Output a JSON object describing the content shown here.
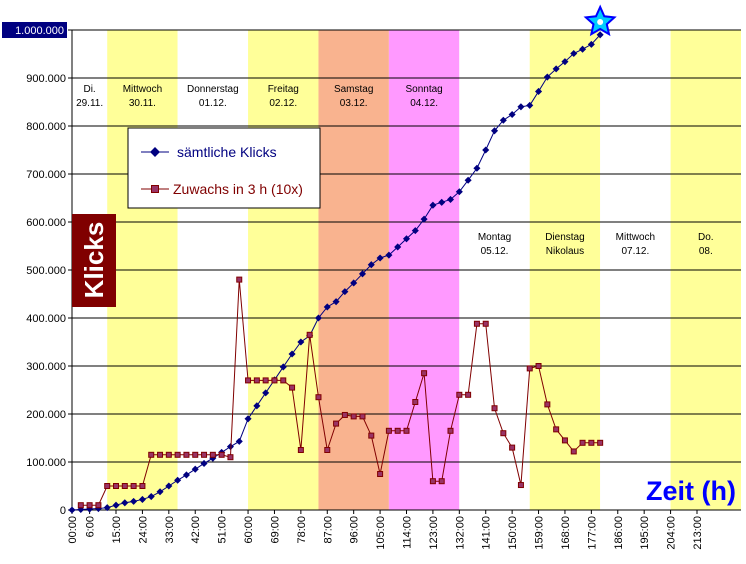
{
  "chart_data": {
    "type": "line",
    "title": "",
    "xlabel": "Zeit (h)",
    "ylabel": "Klicks",
    "ylim": [
      0,
      1000000
    ],
    "xlim": [
      0,
      228
    ],
    "y_ticks": [
      "0",
      "100.000",
      "200.000",
      "300.000",
      "400.000",
      "500.000",
      "600.000",
      "700.000",
      "800.000",
      "900.000",
      "1.000.000"
    ],
    "y_tick_values": [
      0,
      100000,
      200000,
      300000,
      400000,
      500000,
      600000,
      700000,
      800000,
      900000,
      1000000
    ],
    "x_ticks": [
      "00:00",
      "6:00",
      "15:00",
      "24:00",
      "33:00",
      "42:00",
      "51:00",
      "60:00",
      "69:00",
      "78:00",
      "87:00",
      "96:00",
      "105:00",
      "114:00",
      "123:00",
      "132:00",
      "141:00",
      "150:00",
      "159:00",
      "168:00",
      "177:00",
      "186:00",
      "195:00",
      "204:00",
      "213:00"
    ],
    "x_tick_values": [
      0,
      6,
      15,
      24,
      33,
      42,
      51,
      60,
      69,
      78,
      87,
      96,
      105,
      114,
      123,
      132,
      141,
      150,
      159,
      168,
      177,
      186,
      195,
      204,
      213
    ],
    "grid": true,
    "legend_position": "top-left",
    "day_bands": [
      {
        "start": 0,
        "end": 12,
        "color": "#ffffff",
        "label1": "Di.",
        "label2": "29.11.",
        "label_row": "top"
      },
      {
        "start": 12,
        "end": 36,
        "color": "#ffff99",
        "label1": "Mittwoch",
        "label2": "30.11.",
        "label_row": "top"
      },
      {
        "start": 36,
        "end": 60,
        "color": "#ffffff",
        "label1": "Donnerstag",
        "label2": "01.12.",
        "label_row": "top"
      },
      {
        "start": 60,
        "end": 84,
        "color": "#ffff99",
        "label1": "Freitag",
        "label2": "02.12.",
        "label_row": "top"
      },
      {
        "start": 84,
        "end": 108,
        "color": "#f9b38f",
        "label1": "Samstag",
        "label2": "03.12.",
        "label_row": "top"
      },
      {
        "start": 108,
        "end": 132,
        "color": "#ff99ff",
        "label1": "Sonntag",
        "label2": "04.12.",
        "label_row": "top"
      },
      {
        "start": 132,
        "end": 156,
        "color": "#ffffff",
        "label1": "Montag",
        "label2": "05.12.",
        "label_row": "mid"
      },
      {
        "start": 156,
        "end": 180,
        "color": "#ffff99",
        "label1": "Dienstag",
        "label2": "Nikolaus",
        "label_row": "mid"
      },
      {
        "start": 180,
        "end": 204,
        "color": "#ffffff",
        "label1": "Mittwoch",
        "label2": "07.12.",
        "label_row": "mid"
      },
      {
        "start": 204,
        "end": 228,
        "color": "#ffff99",
        "label1": "Do.",
        "label2": "08.",
        "label_row": "mid"
      }
    ],
    "series": [
      {
        "name": "sämtliche Klicks",
        "color": "#000080",
        "marker": "diamond",
        "x": [
          0,
          3,
          6,
          9,
          12,
          15,
          18,
          21,
          24,
          27,
          30,
          33,
          36,
          39,
          42,
          45,
          48,
          51,
          54,
          57,
          60,
          63,
          66,
          69,
          72,
          75,
          78,
          81,
          84,
          87,
          90,
          93,
          96,
          99,
          102,
          105,
          108,
          111,
          114,
          117,
          120,
          123,
          126,
          129,
          132,
          135,
          138,
          141,
          144,
          147,
          150,
          153,
          156,
          159,
          162,
          165,
          168,
          171,
          174,
          177,
          180
        ],
        "values": [
          0,
          1000,
          2000,
          3000,
          5000,
          10000,
          15000,
          18000,
          22000,
          28000,
          38000,
          50000,
          62000,
          73000,
          85000,
          97000,
          108000,
          120000,
          132000,
          143000,
          190000,
          217000,
          244000,
          271000,
          298000,
          325000,
          350000,
          363000,
          400000,
          423000,
          434000,
          455000,
          473000,
          492000,
          511000,
          525000,
          531000,
          548000,
          565000,
          582000,
          606000,
          635000,
          641000,
          647000,
          663000,
          687000,
          712000,
          750000,
          790000,
          812000,
          824000,
          840000,
          843000,
          872000,
          902000,
          919000,
          934000,
          951000,
          960000,
          970000,
          990000
        ]
      },
      {
        "name": "Zuwachs in 3 h (10x)",
        "color": "#800000",
        "marker": "square",
        "x": [
          3,
          6,
          9,
          12,
          15,
          18,
          21,
          24,
          27,
          30,
          33,
          36,
          39,
          42,
          45,
          48,
          51,
          54,
          57,
          60,
          63,
          66,
          69,
          72,
          75,
          78,
          81,
          84,
          87,
          90,
          93,
          96,
          99,
          102,
          105,
          108,
          111,
          114,
          117,
          120,
          123,
          126,
          129,
          132,
          135,
          138,
          141,
          144,
          147,
          150,
          153,
          156,
          159,
          162,
          165,
          168,
          171,
          174,
          177,
          180
        ],
        "values": [
          10000,
          10000,
          10000,
          50000,
          50000,
          50000,
          50000,
          50000,
          115000,
          115000,
          115000,
          115000,
          115000,
          115000,
          115000,
          115000,
          115000,
          110000,
          480000,
          270000,
          270000,
          270000,
          270000,
          270000,
          255000,
          125000,
          365000,
          235000,
          125000,
          180000,
          198000,
          195000,
          195000,
          155000,
          75000,
          165000,
          165000,
          165000,
          225000,
          285000,
          60000,
          60000,
          165000,
          240000,
          240000,
          388000,
          388000,
          212000,
          160000,
          130000,
          52000,
          295000,
          300000,
          220000,
          168000,
          145000,
          122000,
          140000,
          140000,
          140000
        ]
      }
    ],
    "star_marker": {
      "x": 180,
      "y": 1000000
    }
  }
}
